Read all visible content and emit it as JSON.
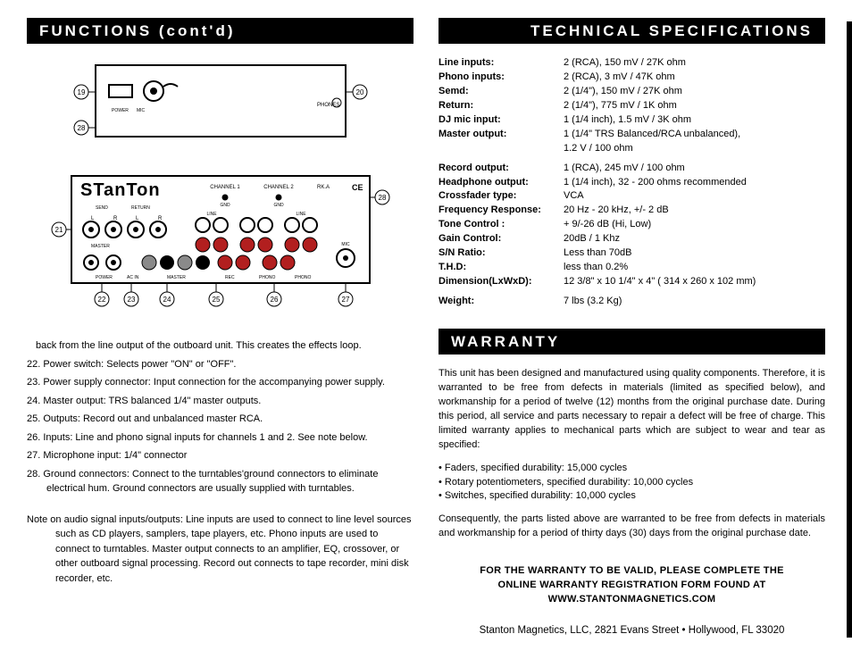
{
  "left": {
    "title": "FUNCTIONS (cont'd)",
    "intro": "back from the line output of the outboard unit. This creates the effects loop.",
    "items": [
      "22. Power switch: Selects power \"ON\" or \"OFF\".",
      "23. Power supply connector: Input connection for the accompanying power supply.",
      "24. Master output:  TRS balanced 1/4\" master outputs.",
      "25. Outputs:  Record out and unbalanced master RCA.",
      "26. Inputs:  Line and phono signal inputs for channels 1 and 2. See note below.",
      "27. Microphone input: 1/4\" connector",
      "28. Ground connectors: Connect to the turntables'ground connectors to eliminate electrical hum. Ground connectors are usually supplied with turntables."
    ],
    "note": "Note on audio signal inputs/outputs:  Line inputs are used to connect to line level sources such as CD players, samplers, tape players, etc.  Phono inputs are used to connect to turntables. Master output connects to an amplifier, EQ, crossover, or other outboard signal processing. Record out connects to tape recorder, mini disk recorder, etc."
  },
  "specs": {
    "title": "TECHNICAL SPECIFICATIONS",
    "rows": [
      {
        "label": "Line inputs:",
        "value": "2 (RCA), 150 mV / 27K ohm"
      },
      {
        "label": "Phono inputs:",
        "value": "2 (RCA), 3 mV / 47K ohm"
      },
      {
        "label": "Semd:",
        "value": "2 (1/4\"), 150 mV / 27K ohm"
      },
      {
        "label": "Return:",
        "value": "2 (1/4\"), 775 mV / 1K ohm"
      },
      {
        "label": "DJ mic input:",
        "value": "1 (1/4 inch), 1.5 mV / 3K ohm"
      },
      {
        "label": "Master output:",
        "value": "1 (1/4\" TRS Balanced/RCA unbalanced),\n1.2 V / 100 ohm"
      },
      {
        "label": "Record output:",
        "value": "1 (RCA), 245 mV / 100 ohm"
      },
      {
        "label": "Headphone output:",
        "value": "1 (1/4 inch), 32 - 200 ohms recommended"
      },
      {
        "label": "Crossfader type:",
        "value": "VCA"
      },
      {
        "label": "Frequency Response:",
        "value": "20 Hz - 20 kHz, +/- 2 dB"
      },
      {
        "label": "Tone Control :",
        "value": "+ 9/-26 dB (Hi, Low)"
      },
      {
        "label": "Gain Control:",
        "value": "20dB / 1 Khz"
      },
      {
        "label": "S/N Ratio:",
        "value": " Less than 70dB"
      },
      {
        "label": "T.H.D:",
        "value": "less than 0.2%"
      },
      {
        "label": "Dimension(LxWxD):",
        "value": "12 3/8\" x 10 1/4\" x  4\" ( 314 x 260 x 102 mm)"
      },
      {
        "label": "Weight:",
        "value": "7 lbs (3.2 Kg)"
      }
    ],
    "gap_after": [
      5,
      14
    ]
  },
  "warranty": {
    "title": "WARRANTY",
    "p1": "This unit has been designed and manufactured using quality components. Therefore, it is warranted to be free from defects in materials (limited as specified below), and workmanship for a period of twelve (12) months from the original purchase date. During this period, all service and parts necessary to repair a defect will be free of charge. This limited warranty applies to mechanical parts which are subject to wear and tear as specified:",
    "bullets": [
      "Faders, specified durability: 15,000 cycles",
      "Rotary potentiometers, specified durability: 10,000 cycles",
      "Switches, specified durability: 10,000 cycles"
    ],
    "p2": "Consequently, the parts listed above are warranted to be free from defects in materials and workmanship for a period of thirty days (30) days from the original purchase date.",
    "cta1": "FOR THE WARRANTY TO BE VALID, PLEASE COMPLETE THE",
    "cta2": "ONLINE WARRANTY REGISTRATION FORM FOUND AT",
    "cta3": "WWW.STANTONMAGNETICS.COM",
    "addr": "Stanton Magnetics, LLC, 2821 Evans Street • Hollywood, FL 33020"
  },
  "diagrams": {
    "top_labels": [
      "19",
      "20",
      "28"
    ],
    "bottom_brand": "STANTON",
    "bottom_side_left": "21",
    "bottom_side_right": "28",
    "bottom_labels_under": [
      "22",
      "23",
      "24",
      "25",
      "26",
      "27"
    ],
    "panel_text": {
      "ch1": "CHANNEL 1",
      "ch2": "CHANNEL 2",
      "gnd": "GND",
      "line": "LINE",
      "mic": "MIC",
      "master": "MASTER",
      "power": "POWER",
      "acin": "AC IN",
      "rec": "REC",
      "phono": "PHONO",
      "send": "SEND",
      "return": "RETURN",
      "rka": "RK.A",
      "ce": "CE"
    },
    "colors": {
      "stroke": "#000000",
      "rca_white": "#ffffff",
      "rca_red": "#b21f1f",
      "rca_gray": "#8a8a8a",
      "rca_black": "#000000"
    }
  }
}
